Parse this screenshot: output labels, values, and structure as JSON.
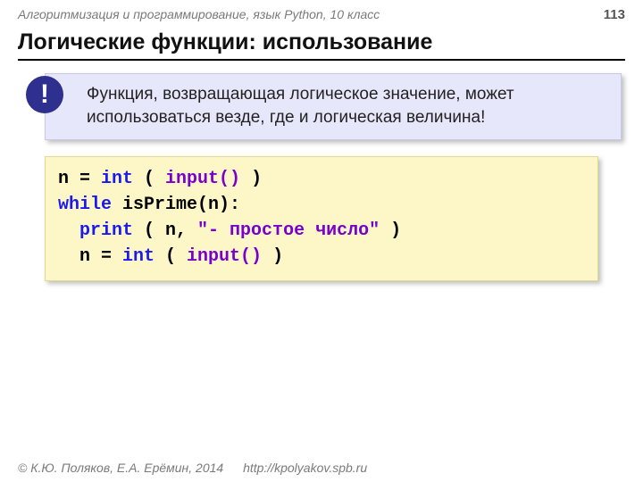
{
  "header": {
    "course": "Алгоритмизация и программирование, язык Python, 10 класс",
    "page": "113"
  },
  "title": "Логические функции: использование",
  "callout": {
    "badge": "!",
    "text": "Функция, возвращающая логическое значение, может использоваться везде, где и логическая величина!"
  },
  "code": {
    "line1": {
      "a": "n = ",
      "b": "int",
      "c": " ( ",
      "d": "input()",
      "e": " )"
    },
    "line2": {
      "a": "while",
      "b": " isPrime(n):"
    },
    "line3": {
      "a": "  ",
      "b": "print",
      "c": " ( n, ",
      "d": "\"- простое число\"",
      "e": " )"
    },
    "line4": {
      "a": "  n = ",
      "b": "int",
      "c": " ( ",
      "d": "input()",
      "e": " )"
    }
  },
  "footer": {
    "copyright": "© К.Ю. Поляков, Е.А. Ерёмин, 2014",
    "url": "http://kpolyakov.spb.ru"
  },
  "colors": {
    "callout_bg": "#e7e7fb",
    "badge_bg": "#2f2f8f",
    "code_bg": "#fdf6c7",
    "keyword": "#1a1af0",
    "purple": "#7a00cc"
  }
}
